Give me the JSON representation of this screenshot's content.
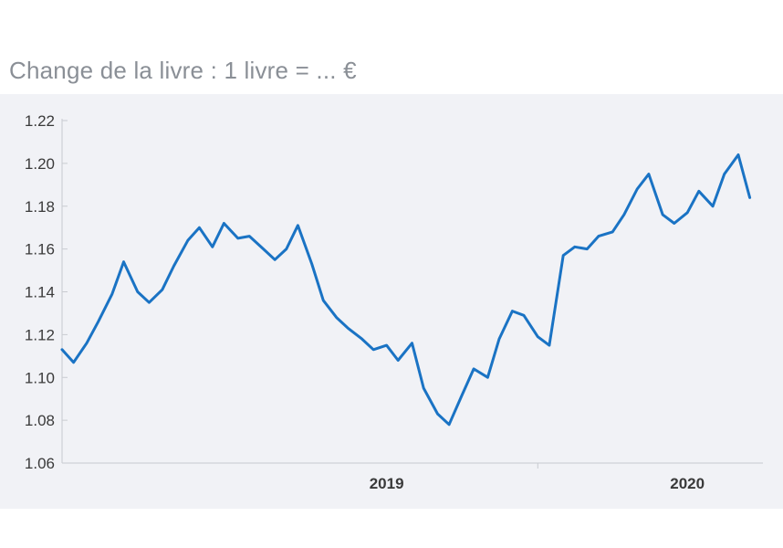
{
  "chart_data": {
    "type": "line",
    "title": "Change de la livre : 1 livre = ... €",
    "xlabel": "",
    "ylabel": "",
    "ylim": [
      1.06,
      1.22
    ],
    "yticks": [
      "1.06",
      "1.08",
      "1.10",
      "1.12",
      "1.14",
      "1.16",
      "1.18",
      "1.20",
      "1.22"
    ],
    "xticks": [
      "2019",
      "2020"
    ],
    "grid": false,
    "line_color": "#1a73c4",
    "series": [
      {
        "name": "",
        "x": [
          "2018-06-01",
          "2018-06-15",
          "2018-07-01",
          "2018-07-15",
          "2018-08-01",
          "2018-08-15",
          "2018-09-01",
          "2018-09-15",
          "2018-10-01",
          "2018-10-15",
          "2018-11-01",
          "2018-11-15",
          "2018-12-01",
          "2018-12-15",
          "2019-01-01",
          "2019-01-15",
          "2019-02-01",
          "2019-02-15",
          "2019-03-01",
          "2019-03-15",
          "2019-04-01",
          "2019-04-15",
          "2019-05-01",
          "2019-05-15",
          "2019-06-01",
          "2019-06-15",
          "2019-07-01",
          "2019-07-15",
          "2019-08-01",
          "2019-08-15",
          "2019-09-01",
          "2019-09-15",
          "2019-10-01",
          "2019-10-15",
          "2019-11-01",
          "2019-11-15",
          "2019-12-01",
          "2019-12-15",
          "2020-01-01",
          "2020-01-15",
          "2020-02-01",
          "2020-02-15",
          "2020-03-01",
          "2020-03-15",
          "2020-04-01",
          "2020-04-15",
          "2020-05-01",
          "2020-05-15",
          "2020-06-01",
          "2020-06-15",
          "2020-07-01",
          "2020-07-15",
          "2020-08-01",
          "2020-08-15",
          "2020-09-01",
          "2020-09-15"
        ],
        "values": [
          1.113,
          1.107,
          1.116,
          1.126,
          1.139,
          1.154,
          1.14,
          1.135,
          1.141,
          1.152,
          1.164,
          1.17,
          1.161,
          1.172,
          1.165,
          1.166,
          1.16,
          1.155,
          1.16,
          1.171,
          1.153,
          1.136,
          1.128,
          1.123,
          1.118,
          1.113,
          1.115,
          1.108,
          1.116,
          1.095,
          1.083,
          1.078,
          1.092,
          1.104,
          1.1,
          1.118,
          1.131,
          1.129,
          1.119,
          1.115,
          1.157,
          1.161,
          1.16,
          1.166,
          1.168,
          1.176,
          1.188,
          1.195,
          1.176,
          1.172,
          1.177,
          1.187,
          1.18,
          1.195,
          1.204,
          1.184
        ]
      }
    ]
  }
}
